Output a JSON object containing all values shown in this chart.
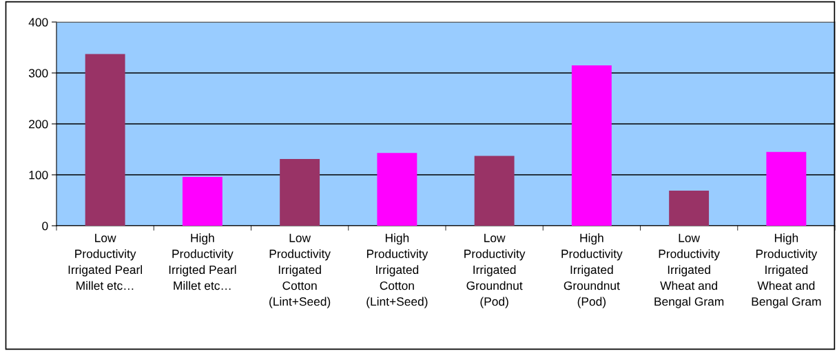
{
  "chart_data": {
    "type": "bar",
    "categories": [
      "Low\nProductivity\nIrrigated Pearl\nMillet etc…",
      "High\nProductivity\nIrrigted Pearl\nMillet etc…",
      "Low\nProductivity\nIrrigated\nCotton\n(Lint+Seed)",
      "High\nProductivity\nIrrigated\nCotton\n(Lint+Seed)",
      "Low\nProductivity\nIrrigated\nGroundnut\n(Pod)",
      "High\nProductivity\nIrrigated\nGroundnut\n(Pod)",
      "Low\nProductivity\nIrrigated\nWheat and\nBengal Gram",
      "High\nProductivity\nIrrigated\nWheat and\nBengal Gram"
    ],
    "values": [
      337,
      96,
      131,
      143,
      137,
      315,
      69,
      145
    ],
    "colors": [
      "#993366",
      "#ff00ff",
      "#993366",
      "#ff00ff",
      "#993366",
      "#ff00ff",
      "#993366",
      "#ff00ff"
    ],
    "ylim": [
      0,
      400
    ],
    "yticks": [
      0,
      100,
      200,
      300,
      400
    ],
    "grid": "y",
    "legend": false
  }
}
